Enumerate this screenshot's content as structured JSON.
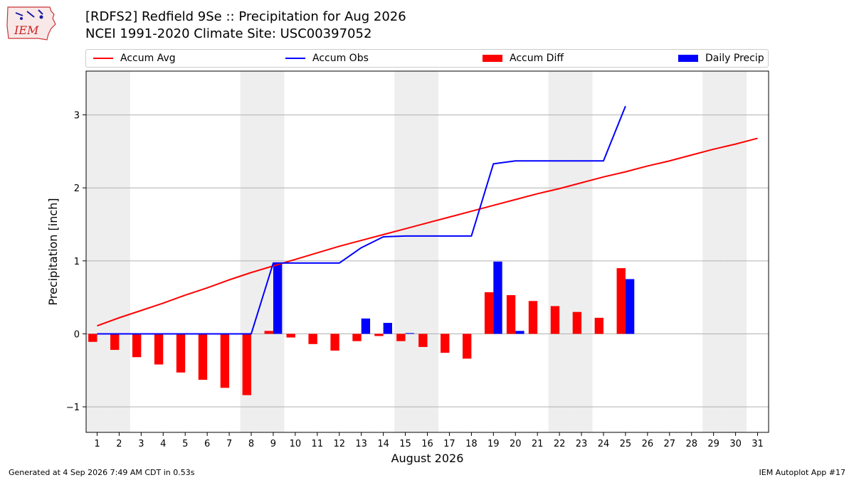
{
  "header": {
    "title_line1": "[RDFS2] Redfield 9Se :: Precipitation for Aug 2026",
    "title_line2": "NCEI 1991-2020 Climate Site: USC00397052"
  },
  "logo": {
    "icon": "iem-iowa-logo-icon",
    "text": "IEM"
  },
  "footer": {
    "generated": "Generated at 4 Sep 2026 7:49 AM CDT in 0.53s",
    "app": "IEM Autoplot App #17"
  },
  "colors": {
    "accum_avg": "#ff0000",
    "accum_obs": "#0000ff",
    "accum_diff": "#ff0000",
    "daily_precip": "#0000ff",
    "weekend_shade": "#eeeeee",
    "grid": "#b0b0b0"
  },
  "chart_data": {
    "type": "bar",
    "title": "[RDFS2] Redfield 9Se :: Precipitation for Aug 2026",
    "subtitle": "NCEI 1991-2020 Climate Site: USC00397052",
    "xlabel": "August 2026",
    "ylabel": "Precipitation [inch]",
    "xlim": [
      0.5,
      31.5
    ],
    "ylim": [
      -1.35,
      3.6
    ],
    "yticks": [
      -1,
      0,
      1,
      2,
      3
    ],
    "ytick_labels": [
      "−1",
      "0",
      "1",
      "2",
      "3"
    ],
    "grid": "y",
    "legend_placement": "top",
    "categories": [
      1,
      2,
      3,
      4,
      5,
      6,
      7,
      8,
      9,
      10,
      11,
      12,
      13,
      14,
      15,
      16,
      17,
      18,
      19,
      20,
      21,
      22,
      23,
      24,
      25,
      26,
      27,
      28,
      29,
      30,
      31
    ],
    "x_tick_labels": [
      "1",
      "2",
      "3",
      "4",
      "5",
      "6",
      "7",
      "8",
      "9",
      "10",
      "11",
      "12",
      "13",
      "14",
      "15",
      "16",
      "17",
      "18",
      "19",
      "20",
      "21",
      "22",
      "23",
      "24",
      "25",
      "26",
      "27",
      "28",
      "29",
      "30",
      "31"
    ],
    "shaded_days": [
      1,
      2,
      8,
      9,
      15,
      16,
      22,
      23,
      29,
      30
    ],
    "series": [
      {
        "name": "Accum Avg",
        "kind": "line",
        "color": "#ff0000",
        "x": [
          1,
          2,
          3,
          4,
          5,
          6,
          7,
          8,
          9,
          10,
          11,
          12,
          13,
          14,
          15,
          16,
          17,
          18,
          19,
          20,
          21,
          22,
          23,
          24,
          25,
          26,
          27,
          28,
          29,
          30,
          31
        ],
        "values": [
          0.11,
          0.22,
          0.32,
          0.42,
          0.53,
          0.63,
          0.74,
          0.84,
          0.93,
          1.02,
          1.11,
          1.2,
          1.28,
          1.36,
          1.44,
          1.52,
          1.6,
          1.68,
          1.76,
          1.84,
          1.92,
          1.99,
          2.07,
          2.15,
          2.22,
          2.3,
          2.37,
          2.45,
          2.53,
          2.6,
          2.68
        ]
      },
      {
        "name": "Accum Obs",
        "kind": "line",
        "color": "#0000ff",
        "x": [
          1,
          2,
          3,
          4,
          5,
          6,
          7,
          8,
          9,
          10,
          11,
          12,
          13,
          14,
          15,
          16,
          17,
          18,
          19,
          20,
          21,
          22,
          23,
          24,
          25
        ],
        "values": [
          0,
          0,
          0,
          0,
          0,
          0,
          0,
          0,
          0.97,
          0.97,
          0.97,
          0.97,
          1.18,
          1.33,
          1.34,
          1.34,
          1.34,
          1.34,
          2.33,
          2.37,
          2.37,
          2.37,
          2.37,
          2.37,
          3.12
        ]
      },
      {
        "name": "Accum Diff",
        "kind": "bar",
        "color": "#ff0000",
        "x": [
          1,
          2,
          3,
          4,
          5,
          6,
          7,
          8,
          9,
          10,
          11,
          12,
          13,
          14,
          15,
          16,
          17,
          18,
          19,
          20,
          21,
          22,
          23,
          24,
          25
        ],
        "values": [
          -0.11,
          -0.22,
          -0.32,
          -0.42,
          -0.53,
          -0.63,
          -0.74,
          -0.84,
          0.04,
          -0.05,
          -0.14,
          -0.23,
          -0.1,
          -0.03,
          -0.1,
          -0.18,
          -0.26,
          -0.34,
          0.57,
          0.53,
          0.45,
          0.38,
          0.3,
          0.22,
          0.9
        ]
      },
      {
        "name": "Daily Precip",
        "kind": "bar",
        "color": "#0000ff",
        "x": [
          1,
          2,
          3,
          4,
          5,
          6,
          7,
          8,
          9,
          10,
          11,
          12,
          13,
          14,
          15,
          16,
          17,
          18,
          19,
          20,
          21,
          22,
          23,
          24,
          25
        ],
        "values": [
          0,
          0,
          0,
          0,
          0,
          0,
          0,
          0,
          0.97,
          0,
          0,
          0,
          0.21,
          0.15,
          0.01,
          0,
          0,
          0,
          0.99,
          0.04,
          0,
          0,
          0,
          0,
          0.75
        ]
      }
    ]
  }
}
